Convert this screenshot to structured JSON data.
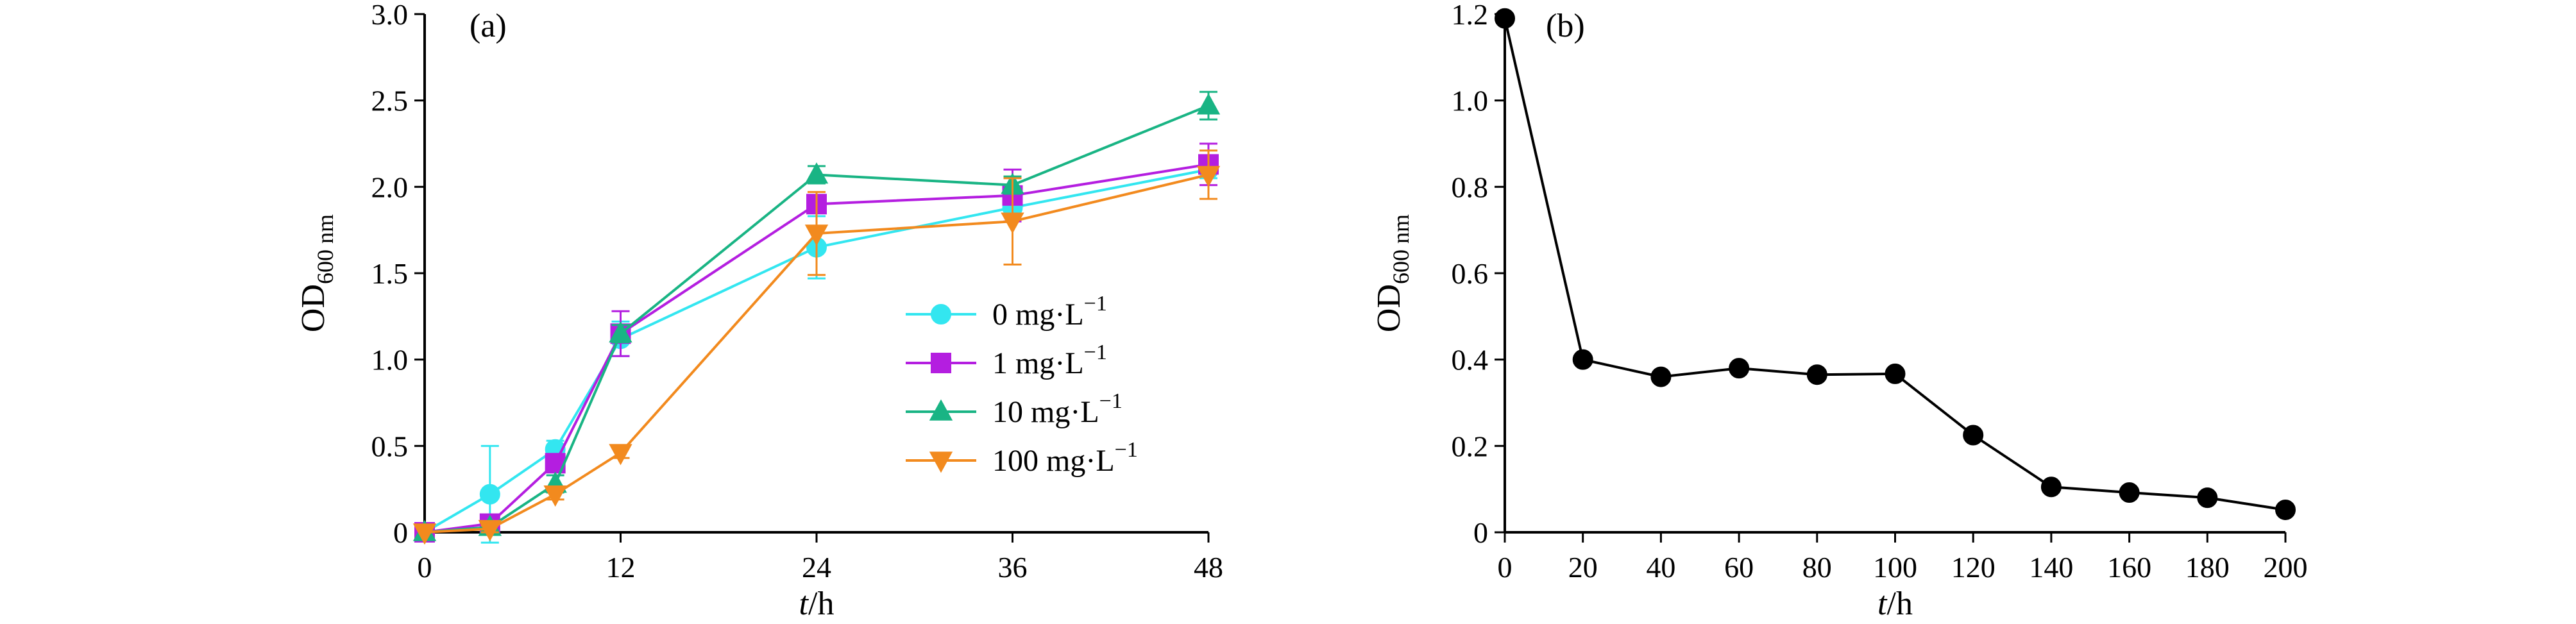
{
  "chart_data": [
    {
      "type": "line",
      "panel_label": "(a)",
      "ylabel": {
        "main": "OD",
        "sub": "600 nm"
      },
      "xlabel": {
        "var": "t",
        "unit": "/h"
      },
      "xlim": [
        0,
        48
      ],
      "ylim": [
        0,
        3.0
      ],
      "xticks": [
        0,
        12,
        24,
        36,
        48
      ],
      "yticks": [
        0,
        0.5,
        1.0,
        1.5,
        2.0,
        2.5,
        3.0
      ],
      "ytick_labels": [
        "0",
        "0.5",
        "1.0",
        "1.5",
        "2.0",
        "2.5",
        "3.0"
      ],
      "grid": false,
      "legend_position": "center-right",
      "series": [
        {
          "name": "0 mg·L",
          "name_sup": "−1",
          "color": "#33e6f0",
          "marker": "circle",
          "x": [
            0,
            4,
            8,
            12,
            24,
            36,
            48
          ],
          "y": [
            0.0,
            0.22,
            0.48,
            1.12,
            1.65,
            1.88,
            2.1
          ],
          "err": [
            0,
            0.28,
            0.05,
            0.1,
            0.18,
            0.05,
            0.05
          ]
        },
        {
          "name": "1 mg·L",
          "name_sup": "−1",
          "color": "#b41ee0",
          "marker": "square",
          "x": [
            0,
            4,
            8,
            12,
            24,
            36,
            48
          ],
          "y": [
            0.0,
            0.05,
            0.4,
            1.15,
            1.9,
            1.95,
            2.13
          ],
          "err": [
            0,
            0.03,
            0.05,
            0.13,
            0.05,
            0.15,
            0.12
          ]
        },
        {
          "name": "10 mg·L",
          "name_sup": "−1",
          "color": "#19b484",
          "marker": "triangle-up",
          "x": [
            0,
            4,
            8,
            12,
            24,
            36,
            48
          ],
          "y": [
            0.0,
            0.03,
            0.28,
            1.15,
            2.07,
            2.01,
            2.47
          ],
          "err": [
            0,
            0.02,
            0.05,
            0.05,
            0.05,
            0.05,
            0.08
          ]
        },
        {
          "name": "100 mg·L",
          "name_sup": "−1",
          "color": "#f28a1e",
          "marker": "triangle-down",
          "x": [
            0,
            4,
            8,
            12,
            24,
            36,
            48
          ],
          "y": [
            0.0,
            0.02,
            0.22,
            0.46,
            1.73,
            1.8,
            2.07
          ],
          "err": [
            0,
            0.02,
            0.03,
            0.03,
            0.24,
            0.25,
            0.14
          ]
        }
      ]
    },
    {
      "type": "line",
      "panel_label": "(b)",
      "ylabel": {
        "main": "OD",
        "sub": "600 nm"
      },
      "xlabel": {
        "var": "t",
        "unit": "/h"
      },
      "xlim": [
        0,
        200
      ],
      "ylim": [
        0,
        1.2
      ],
      "xticks": [
        0,
        20,
        40,
        60,
        80,
        100,
        120,
        140,
        160,
        180,
        200
      ],
      "yticks": [
        0,
        0.2,
        0.4,
        0.6,
        0.8,
        1.0,
        1.2
      ],
      "ytick_labels": [
        "0",
        "0.2",
        "0.4",
        "0.6",
        "0.8",
        "1.0",
        "1.2"
      ],
      "grid": false,
      "series": [
        {
          "color": "#000000",
          "marker": "circle",
          "x": [
            0,
            20,
            40,
            60,
            80,
            100,
            120,
            140,
            160,
            180,
            200
          ],
          "y": [
            1.19,
            0.4,
            0.36,
            0.38,
            0.365,
            0.367,
            0.225,
            0.105,
            0.092,
            0.08,
            0.052
          ]
        }
      ]
    }
  ]
}
